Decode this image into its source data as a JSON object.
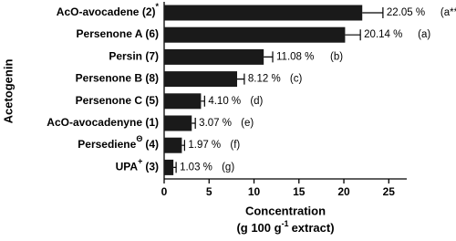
{
  "chart_data": {
    "type": "bar",
    "orientation": "horizontal",
    "y_label": "Acetogenin",
    "x_label": "Concentration",
    "x_unit": {
      "text": "(g 100 g",
      "sup": "-1",
      "suffix": "extract)"
    },
    "categories": [
      {
        "name": "AcO-avocadene (2)",
        "sup": "*"
      },
      {
        "name": "Persenone A (6)"
      },
      {
        "name": "Persin (7)"
      },
      {
        "name": "Persenone B (8)"
      },
      {
        "name": "Persenone C (5)"
      },
      {
        "name": "AcO-avocadenyne (1)"
      },
      {
        "name": "Persediene",
        "sup": "Θ",
        "suffix": "(4)"
      },
      {
        "name": "UPA",
        "sup": "+",
        "suffix": "(3)"
      }
    ],
    "values": [
      22.05,
      20.14,
      11.08,
      8.12,
      4.1,
      3.07,
      1.97,
      1.03
    ],
    "value_labels": [
      "22.05 %",
      "20.14 %",
      "11.08  %",
      "8.12 %",
      "4.10 %",
      "3.07 %",
      "1.97 %",
      "1.03 %"
    ],
    "errors": [
      2.3,
      1.7,
      1.0,
      0.8,
      0.4,
      0.4,
      0.3,
      0.3
    ],
    "annotations": [
      "(a**)",
      "(a)",
      "(b)",
      "(c)",
      "(d)",
      "(e)",
      "(f)",
      "(g)"
    ],
    "color": "#1a1a1a",
    "xlim": [
      0,
      27
    ],
    "xticks": [
      0,
      5,
      10,
      15,
      20,
      25
    ]
  }
}
